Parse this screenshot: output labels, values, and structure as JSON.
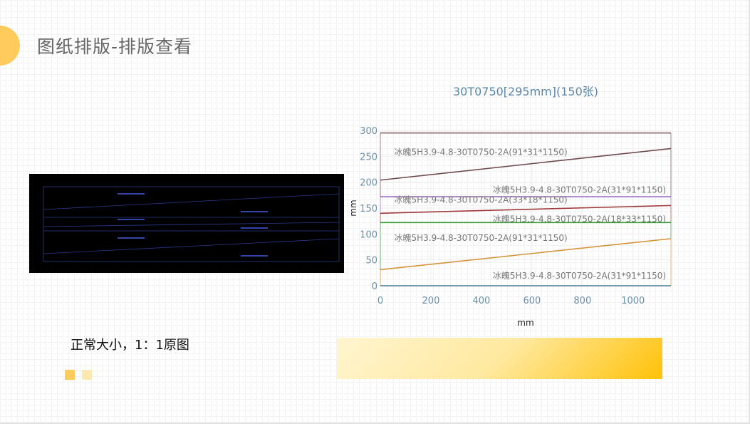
{
  "header": {
    "title": "图纸排版-排版查看"
  },
  "caption": "正常大小，1：1原图",
  "colors": {
    "accent": "#ffcb5c",
    "accent_light": "#fde9b0",
    "chart_title": "#5b87a8"
  },
  "chart_data": {
    "type": "line",
    "title": "30T0750[295mm](150张)",
    "xlabel": "mm",
    "ylabel": "mm",
    "xlim": [
      0,
      1150
    ],
    "ylim": [
      0,
      300
    ],
    "xticks": [
      0,
      200,
      400,
      600,
      800,
      1000
    ],
    "yticks": [
      0,
      50,
      100,
      150,
      200,
      250,
      300
    ],
    "grid": true,
    "series": [
      {
        "x": [
          0,
          1150
        ],
        "y": [
          0,
          0
        ],
        "color": "#4a7f96"
      },
      {
        "x": [
          0,
          1150
        ],
        "y": [
          31,
          91
        ],
        "color": "#d4953a"
      },
      {
        "x": [
          0,
          1150
        ],
        "y": [
          122,
          122
        ],
        "color": "#3a9a3a"
      },
      {
        "x": [
          0,
          1150
        ],
        "y": [
          140,
          155
        ],
        "color": "#a03a3a"
      },
      {
        "x": [
          0,
          1150
        ],
        "y": [
          172,
          172
        ],
        "color": "#9a6fbf"
      },
      {
        "x": [
          0,
          1150
        ],
        "y": [
          204,
          265
        ],
        "color": "#6e4a50"
      },
      {
        "x": [
          0,
          1150
        ],
        "y": [
          295,
          295
        ],
        "color": "#7a5a5a"
      }
    ],
    "annotations": [
      {
        "text": "冰魄5H3.9-4.8-30T0750-2A(91*31*1150)",
        "x": 55,
        "y": 258
      },
      {
        "text": "冰魄5H3.9-4.8-30T0750-2A(31*91*1150)",
        "x": 445,
        "y": 185
      },
      {
        "text": "冰魄5H3.9-4.8-30T0750-2A(33*18*1150)",
        "x": 55,
        "y": 166
      },
      {
        "text": "冰魄5H3.9-4.8-30T0750-2A(18*33*1150)",
        "x": 445,
        "y": 129
      },
      {
        "text": "冰魄5H3.9-4.8-30T0750-2A(91*31*1150)",
        "x": 55,
        "y": 92
      },
      {
        "text": "冰魄5H3.9-4.8-30T0750-2A(31*91*1150)",
        "x": 445,
        "y": 19
      }
    ]
  }
}
